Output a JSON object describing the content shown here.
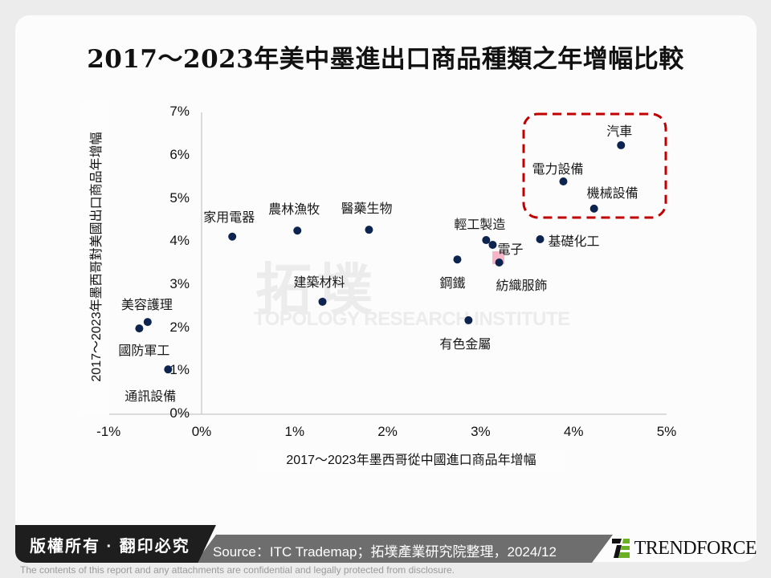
{
  "title": "2017～2023年美中墨進出口商品種類之年增幅比較",
  "watermark": {
    "zh": "拓墣",
    "en": "TOPOLOGY RESEARCH INSTITUTE"
  },
  "colors": {
    "point": "#0d2451",
    "highlight_box": "#c00000",
    "pink_marker": "#f7b6c8",
    "footer_dark": "#1e1e1e",
    "footer_gray": "#6e6e6e",
    "brand_green": "#6ab023"
  },
  "chart_data": {
    "type": "scatter",
    "title": "2017～2023年美中墨進出口商品種類之年增幅比較",
    "xlabel": "2017～2023年墨西哥從中國進口商品年增幅",
    "ylabel": "2017～2023年墨西哥對美國出口商品年增幅",
    "xlim": [
      -1,
      5
    ],
    "ylim": [
      0,
      7
    ],
    "x_ticks": [
      "-1%",
      "0%",
      "1%",
      "2%",
      "3%",
      "4%",
      "5%"
    ],
    "y_ticks": [
      "0%",
      "1%",
      "2%",
      "3%",
      "4%",
      "5%",
      "6%",
      "7%"
    ],
    "grid": false,
    "unit": "%",
    "points": [
      {
        "label": "家用電器",
        "x": 0.33,
        "y": 4.12
      },
      {
        "label": "農林漁牧",
        "x": 1.03,
        "y": 4.26
      },
      {
        "label": "醫藥生物",
        "x": 1.8,
        "y": 4.28
      },
      {
        "label": "建築材料",
        "x": 1.3,
        "y": 2.61
      },
      {
        "label": "美容護理",
        "x": -0.58,
        "y": 2.14
      },
      {
        "label": "國防軍工",
        "x": -0.67,
        "y": 1.99
      },
      {
        "label": "通訊設備",
        "x": -0.36,
        "y": 1.04
      },
      {
        "label": "鋼鐵",
        "x": 2.75,
        "y": 3.59
      },
      {
        "label": "輕工製造",
        "x": 3.06,
        "y": 4.04
      },
      {
        "label": "電子",
        "x": 3.13,
        "y": 3.93
      },
      {
        "label": "紡織服飾",
        "x": 3.2,
        "y": 3.52
      },
      {
        "label": "有色金屬",
        "x": 2.87,
        "y": 2.18
      },
      {
        "label": "基礎化工",
        "x": 3.64,
        "y": 4.06
      },
      {
        "label": "汽車",
        "x": 4.51,
        "y": 6.24
      },
      {
        "label": "電力設備",
        "x": 3.89,
        "y": 5.4
      },
      {
        "label": "機械設備",
        "x": 4.22,
        "y": 4.77
      }
    ],
    "annotations": [
      {
        "type": "dashed-rounded-box",
        "color": "#c00000",
        "encloses": [
          "汽車",
          "電力設備",
          "機械設備"
        ]
      }
    ]
  },
  "footer": {
    "copyright": "版權所有 · 翻印必究",
    "source": "Source：ITC Trademap；拓墣產業研究院整理，2024/12",
    "brand": "TRENDFORCE",
    "disclaimer": "The contents of this report and any attachments are confidential and legally protected from disclosure."
  }
}
